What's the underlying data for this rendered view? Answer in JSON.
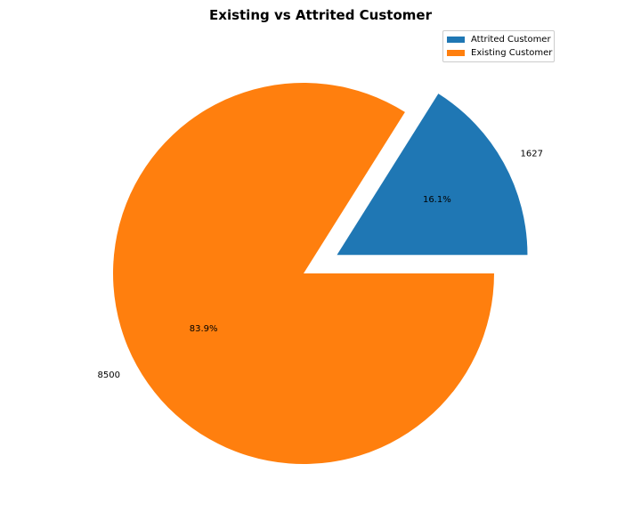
{
  "chart_data": {
    "type": "pie",
    "title": "Existing vs Attrited Customer",
    "categories": [
      "Attrited Customer",
      "Existing Customer"
    ],
    "values": [
      1627,
      8500
    ],
    "value_labels": [
      "1627",
      "8500"
    ],
    "percent_labels": [
      "16.1%",
      "83.9%"
    ],
    "colors": [
      "#1f77b4",
      "#ff7f0e"
    ],
    "explode": [
      0.2,
      0
    ],
    "start_angle_deg": 0,
    "legend_position": "upper-right"
  }
}
